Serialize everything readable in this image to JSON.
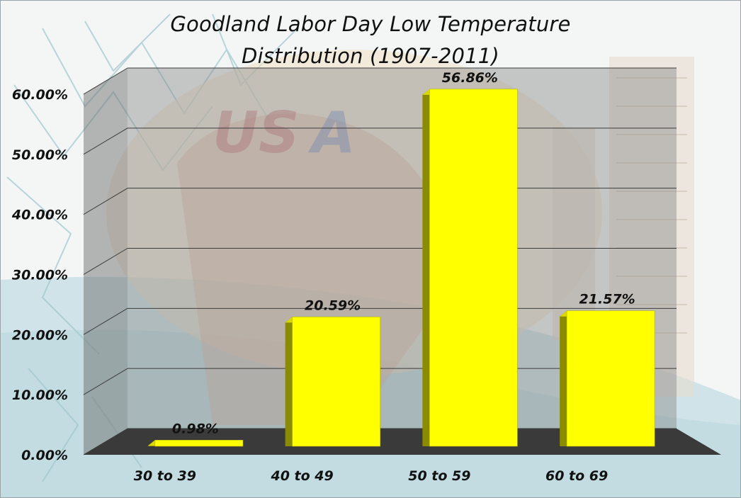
{
  "chart_data": {
    "type": "bar",
    "title_lines": [
      "Goodland Labor Day Low Temperature",
      "Distribution (1907-2011)"
    ],
    "categories": [
      "30 to 39",
      "40 to 49",
      "50 to 59",
      "60 to 69"
    ],
    "values": [
      0.98,
      20.59,
      56.86,
      21.57
    ],
    "data_labels": [
      "0.98%",
      "20.59%",
      "56.86%",
      "21.57%"
    ],
    "y_ticks": [
      "0.00%",
      "10.00%",
      "20.00%",
      "30.00%",
      "40.00%",
      "50.00%",
      "60.00%"
    ],
    "ylim": [
      0,
      60
    ],
    "grid": true,
    "three_d": true,
    "bar_color": "#ffff00",
    "bar_side_color": "#8b8b00",
    "bar_top_color": "#d8d800",
    "floor_color": "#3a3a3a",
    "wall_color": "#8a8a8a"
  }
}
